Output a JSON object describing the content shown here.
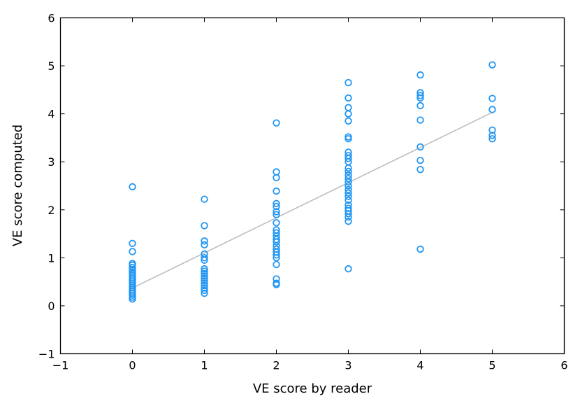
{
  "chart_data": {
    "type": "scatter",
    "title": "",
    "xlabel": "VE score by reader",
    "ylabel": "VE score computed",
    "xlim": [
      -1,
      6
    ],
    "ylim": [
      -1,
      6
    ],
    "x_ticks": [
      -1,
      0,
      1,
      2,
      3,
      4,
      5,
      6
    ],
    "y_ticks": [
      -1,
      0,
      1,
      2,
      3,
      4,
      5,
      6
    ],
    "x_tick_labels": [
      "−1",
      "0",
      "1",
      "2",
      "3",
      "4",
      "5",
      "6"
    ],
    "y_tick_labels": [
      "−1",
      "0",
      "1",
      "2",
      "3",
      "4",
      "5",
      "6"
    ],
    "grid": false,
    "legend": "none",
    "marker_color": "#2196F3",
    "fit_line_color": "#bdbdbd",
    "fit_line": {
      "x": [
        0,
        5
      ],
      "y": [
        0.37,
        4.03
      ]
    },
    "points": [
      [
        0,
        2.48
      ],
      [
        0,
        1.3
      ],
      [
        0,
        1.13
      ],
      [
        0,
        0.88
      ],
      [
        0,
        0.85
      ],
      [
        0,
        0.8
      ],
      [
        0,
        0.75
      ],
      [
        0,
        0.7
      ],
      [
        0,
        0.66
      ],
      [
        0,
        0.62
      ],
      [
        0,
        0.58
      ],
      [
        0,
        0.54
      ],
      [
        0,
        0.5
      ],
      [
        0,
        0.46
      ],
      [
        0,
        0.42
      ],
      [
        0,
        0.38
      ],
      [
        0,
        0.34
      ],
      [
        0,
        0.3
      ],
      [
        0,
        0.26
      ],
      [
        0,
        0.22
      ],
      [
        0,
        0.18
      ],
      [
        0,
        0.14
      ],
      [
        1,
        2.22
      ],
      [
        1,
        1.67
      ],
      [
        1,
        1.35
      ],
      [
        1,
        1.27
      ],
      [
        1,
        1.08
      ],
      [
        1,
        1.0
      ],
      [
        1,
        0.95
      ],
      [
        1,
        0.77
      ],
      [
        1,
        0.72
      ],
      [
        1,
        0.67
      ],
      [
        1,
        0.62
      ],
      [
        1,
        0.57
      ],
      [
        1,
        0.52
      ],
      [
        1,
        0.47
      ],
      [
        1,
        0.42
      ],
      [
        1,
        0.37
      ],
      [
        1,
        0.32
      ],
      [
        1,
        0.26
      ],
      [
        2,
        3.81
      ],
      [
        2,
        2.79
      ],
      [
        2,
        2.67
      ],
      [
        2,
        2.39
      ],
      [
        2,
        2.13
      ],
      [
        2,
        2.07
      ],
      [
        2,
        1.96
      ],
      [
        2,
        1.9
      ],
      [
        2,
        1.73
      ],
      [
        2,
        1.58
      ],
      [
        2,
        1.52
      ],
      [
        2,
        1.45
      ],
      [
        2,
        1.38
      ],
      [
        2,
        1.33
      ],
      [
        2,
        1.25
      ],
      [
        2,
        1.18
      ],
      [
        2,
        1.12
      ],
      [
        2,
        1.06
      ],
      [
        2,
        1.0
      ],
      [
        2,
        0.86
      ],
      [
        2,
        0.56
      ],
      [
        2,
        0.47
      ],
      [
        2,
        0.44
      ],
      [
        3,
        4.65
      ],
      [
        3,
        4.33
      ],
      [
        3,
        4.13
      ],
      [
        3,
        4.0
      ],
      [
        3,
        3.85
      ],
      [
        3,
        3.52
      ],
      [
        3,
        3.48
      ],
      [
        3,
        3.2
      ],
      [
        3,
        3.13
      ],
      [
        3,
        3.07
      ],
      [
        3,
        3.0
      ],
      [
        3,
        2.87
      ],
      [
        3,
        2.8
      ],
      [
        3,
        2.72
      ],
      [
        3,
        2.65
      ],
      [
        3,
        2.58
      ],
      [
        3,
        2.5
      ],
      [
        3,
        2.42
      ],
      [
        3,
        2.35
      ],
      [
        3,
        2.28
      ],
      [
        3,
        2.2
      ],
      [
        3,
        2.1
      ],
      [
        3,
        2.03
      ],
      [
        3,
        1.98
      ],
      [
        3,
        1.92
      ],
      [
        3,
        1.85
      ],
      [
        3,
        1.76
      ],
      [
        3,
        0.77
      ],
      [
        4,
        4.81
      ],
      [
        4,
        4.44
      ],
      [
        4,
        4.38
      ],
      [
        4,
        4.33
      ],
      [
        4,
        4.17
      ],
      [
        4,
        3.87
      ],
      [
        4,
        3.31
      ],
      [
        4,
        3.03
      ],
      [
        4,
        2.84
      ],
      [
        4,
        1.18
      ],
      [
        5,
        5.02
      ],
      [
        5,
        4.32
      ],
      [
        5,
        4.09
      ],
      [
        5,
        3.66
      ],
      [
        5,
        3.55
      ],
      [
        5,
        3.48
      ]
    ]
  }
}
